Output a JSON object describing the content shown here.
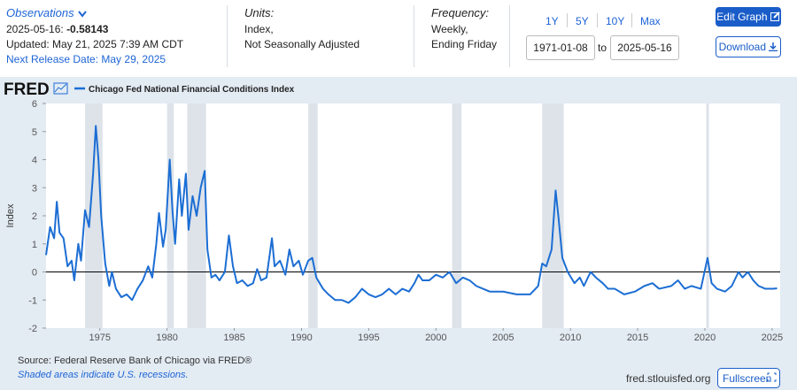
{
  "observations": {
    "label": "Observations",
    "date": "2025-05-16:",
    "value": -0.58143,
    "updated": "Updated: May 21, 2025 7:39 AM CDT",
    "next_release": "Next Release Date: May 29, 2025"
  },
  "units": {
    "label": "Units:",
    "lines": [
      "Index,",
      "Not Seasonally Adjusted"
    ]
  },
  "frequency": {
    "label": "Frequency:",
    "lines": [
      "Weekly,",
      "Ending Friday"
    ]
  },
  "range_buttons": [
    "1Y",
    "5Y",
    "10Y",
    "Max"
  ],
  "date_range": {
    "start": "1971-01-08",
    "to": "to",
    "end": "2025-05-16"
  },
  "buttons": {
    "edit": "Edit Graph",
    "download": "Download",
    "fullscreen": "Fullscreen"
  },
  "logo": "FRED",
  "source": "Source: Federal Reserve Bank of Chicago via FRED®",
  "recession_note": "Shaded areas indicate U.S. recessions.",
  "site": "fred.stlouisfed.org",
  "chart_data": {
    "type": "line",
    "y_label": "Index",
    "xlim": [
      1971,
      2025.6
    ],
    "ylim": [
      -2,
      6
    ],
    "xticks": [
      1975,
      1980,
      1985,
      1990,
      1995,
      2000,
      2005,
      2010,
      2015,
      2020,
      2025
    ],
    "yticks": [
      -2,
      -1,
      0,
      1,
      2,
      3,
      4,
      5,
      6
    ],
    "recessions": [
      [
        1973.9,
        1975.2
      ],
      [
        1980.0,
        1980.5
      ],
      [
        1981.5,
        1982.9
      ],
      [
        1990.5,
        1991.2
      ],
      [
        2001.2,
        2001.9
      ],
      [
        2007.9,
        2009.5
      ],
      [
        2020.1,
        2020.3
      ]
    ],
    "series": [
      {
        "name": "Chicago Fed National Financial Conditions Index",
        "color": "#1c6ed4",
        "x": [
          1971.0,
          1971.3,
          1971.6,
          1971.8,
          1972.0,
          1972.3,
          1972.6,
          1972.9,
          1973.1,
          1973.4,
          1973.6,
          1973.9,
          1974.2,
          1974.5,
          1974.7,
          1974.9,
          1975.1,
          1975.4,
          1975.7,
          1975.9,
          1976.2,
          1976.6,
          1977.0,
          1977.4,
          1977.8,
          1978.2,
          1978.6,
          1978.9,
          1979.2,
          1979.4,
          1979.7,
          1979.9,
          1980.2,
          1980.4,
          1980.6,
          1980.9,
          1981.1,
          1981.4,
          1981.6,
          1981.9,
          1982.2,
          1982.5,
          1982.8,
          1983.0,
          1983.3,
          1983.6,
          1983.9,
          1984.3,
          1984.6,
          1984.9,
          1985.2,
          1985.6,
          1986.0,
          1986.4,
          1986.7,
          1987.0,
          1987.4,
          1987.8,
          1988.0,
          1988.4,
          1988.8,
          1989.1,
          1989.4,
          1989.8,
          1990.1,
          1990.5,
          1990.8,
          1991.1,
          1991.6,
          1992.0,
          1992.5,
          1993.0,
          1993.5,
          1994.0,
          1994.5,
          1995.0,
          1995.5,
          1996.0,
          1996.5,
          1997.0,
          1997.5,
          1998.0,
          1998.4,
          1998.7,
          1999.0,
          1999.5,
          2000.0,
          2000.5,
          2001.0,
          2001.5,
          2002.0,
          2002.5,
          2003.0,
          2003.5,
          2004.0,
          2005.0,
          2006.0,
          2007.0,
          2007.6,
          2007.9,
          2008.2,
          2008.6,
          2008.9,
          2009.1,
          2009.4,
          2009.8,
          2010.3,
          2010.7,
          2011.0,
          2011.5,
          2011.9,
          2012.4,
          2012.8,
          2013.3,
          2014.0,
          2014.8,
          2015.5,
          2016.1,
          2016.6,
          2017.5,
          2018.0,
          2018.5,
          2019.0,
          2019.7,
          2020.2,
          2020.5,
          2020.9,
          2021.5,
          2022.0,
          2022.5,
          2022.8,
          2023.2,
          2023.6,
          2024.0,
          2024.5,
          2025.1,
          2025.37
        ],
        "values": [
          0.6,
          1.6,
          1.2,
          2.5,
          1.4,
          1.2,
          0.2,
          0.4,
          -0.3,
          1.0,
          0.4,
          2.2,
          1.6,
          3.5,
          5.2,
          4.0,
          2.0,
          0.3,
          -0.5,
          0.0,
          -0.6,
          -0.9,
          -0.8,
          -1.0,
          -0.6,
          -0.3,
          0.2,
          -0.2,
          1.0,
          2.1,
          0.9,
          1.5,
          4.0,
          2.2,
          1.0,
          3.3,
          2.0,
          3.5,
          1.5,
          2.7,
          2.0,
          3.0,
          3.6,
          0.8,
          -0.2,
          -0.1,
          -0.3,
          0.0,
          1.3,
          0.2,
          -0.4,
          -0.3,
          -0.5,
          -0.4,
          0.1,
          -0.3,
          -0.2,
          1.2,
          0.2,
          0.4,
          -0.1,
          0.8,
          0.2,
          0.4,
          -0.1,
          0.4,
          0.5,
          -0.2,
          -0.6,
          -0.8,
          -1.0,
          -1.0,
          -1.1,
          -0.9,
          -0.6,
          -0.8,
          -0.9,
          -0.8,
          -0.6,
          -0.8,
          -0.6,
          -0.7,
          -0.4,
          -0.1,
          -0.3,
          -0.3,
          -0.1,
          -0.2,
          0.0,
          -0.4,
          -0.2,
          -0.3,
          -0.5,
          -0.6,
          -0.7,
          -0.7,
          -0.8,
          -0.8,
          -0.5,
          0.3,
          0.2,
          0.8,
          2.9,
          2.0,
          0.5,
          0.0,
          -0.4,
          -0.2,
          -0.5,
          0.0,
          -0.2,
          -0.4,
          -0.6,
          -0.6,
          -0.8,
          -0.7,
          -0.5,
          -0.4,
          -0.6,
          -0.5,
          -0.3,
          -0.6,
          -0.5,
          -0.6,
          0.5,
          -0.4,
          -0.6,
          -0.7,
          -0.5,
          0.0,
          -0.2,
          0.0,
          -0.3,
          -0.5,
          -0.6,
          -0.6,
          -0.58143
        ]
      }
    ]
  }
}
